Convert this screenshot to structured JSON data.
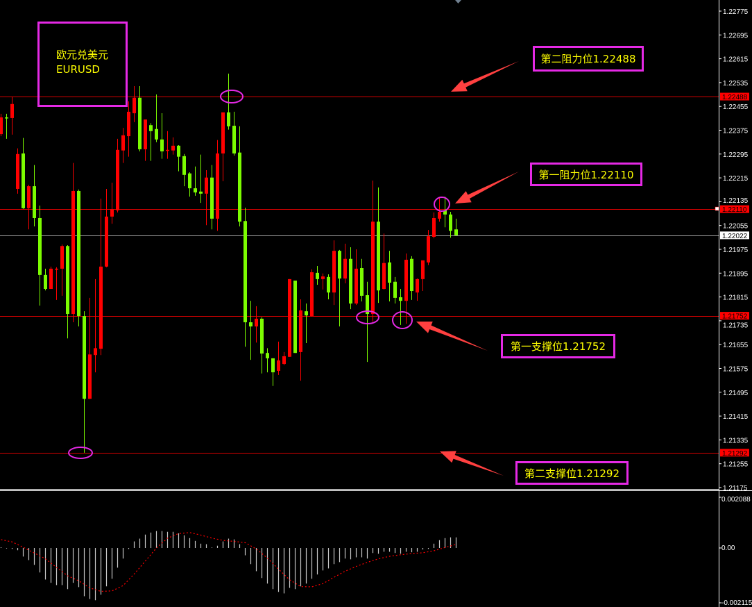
{
  "symbol_box": {
    "name_cn": "欧元兑美元",
    "symbol": "EURUSD"
  },
  "annotations": [
    {
      "label": "第二阻力位1.22488",
      "price": 1.22488
    },
    {
      "label": "第一阻力位1.22110",
      "price": 1.2211
    },
    {
      "label": "第一支撑位1.21752",
      "price": 1.21752
    },
    {
      "label": "第二支撑位1.21292",
      "price": 1.21292
    }
  ],
  "price_tags": [
    {
      "label": "1.22488",
      "value": 1.22488,
      "bg": "#ff0000"
    },
    {
      "label": "1.22110",
      "value": 1.2211,
      "bg": "#ff0000"
    },
    {
      "label": "1.22022",
      "value": 1.22022,
      "bg": "#ffffff"
    },
    {
      "label": "1.21752",
      "value": 1.21752,
      "bg": "#ff0000"
    },
    {
      "label": "1.21292",
      "value": 1.21292,
      "bg": "#ff0000"
    }
  ],
  "macd_axis": {
    "top": "0.002088",
    "zero": "0.00",
    "bottom": "-0.002115"
  },
  "colors": {
    "up": "#ff0000",
    "down": "#7cfc00",
    "level": "#ff0000",
    "bid": "#a0a0a0",
    "marker": "#e529e5",
    "arrow": "#ff4040",
    "text": "#ffff00",
    "histogram": "#c8c8c8",
    "signal": "#ff0000"
  },
  "chart_data": [
    {
      "type": "candlestick",
      "symbol": "EURUSD",
      "y_ticks": [
        "1.22775",
        "1.22695",
        "1.22615",
        "1.22535",
        "1.22455",
        "1.22375",
        "1.22295",
        "1.22215",
        "1.22135",
        "1.22055",
        "1.21975",
        "1.21895",
        "1.21815",
        "1.21735",
        "1.21655",
        "1.21575",
        "1.21495",
        "1.21415",
        "1.21335",
        "1.21255",
        "1.21175"
      ],
      "horizontal_levels": [
        1.22488,
        1.2211,
        1.21752,
        1.21292
      ],
      "bid": 1.22022,
      "ohlc": [
        [
          1.22362,
          1.2243,
          1.22355,
          1.22418
        ],
        [
          1.22418,
          1.2243,
          1.22346,
          1.22416
        ],
        [
          1.22416,
          1.22488,
          1.2236,
          1.22463
        ],
        [
          1.22178,
          1.22314,
          1.22162,
          1.22295
        ],
        [
          1.22297,
          1.22349,
          1.22111,
          1.22113
        ],
        [
          1.22113,
          1.22192,
          1.22042,
          1.22187
        ],
        [
          1.22187,
          1.22258,
          1.22052,
          1.2208
        ],
        [
          1.2208,
          1.22122,
          1.21786,
          1.21889
        ],
        [
          1.21889,
          1.2191,
          1.21837,
          1.21842
        ],
        [
          1.21842,
          1.21917,
          1.21842,
          1.2191
        ],
        [
          1.21908,
          1.21915,
          1.21805,
          1.2191
        ],
        [
          1.2191,
          1.21991,
          1.21819,
          1.21986
        ],
        [
          1.21986,
          1.21989,
          1.21676,
          1.21758
        ],
        [
          1.21758,
          1.22265,
          1.2173,
          1.22171
        ],
        [
          1.22171,
          1.22176,
          1.21716,
          1.21751
        ],
        [
          1.21751,
          1.21767,
          1.21292,
          1.21473
        ],
        [
          1.21473,
          1.21812,
          1.21473,
          1.21622
        ],
        [
          1.2162,
          1.21875,
          1.21562,
          1.21643
        ],
        [
          1.21641,
          1.22145,
          1.2162,
          1.21917
        ],
        [
          1.21917,
          1.22178,
          1.21915,
          1.22085
        ],
        [
          1.22085,
          1.22199,
          1.22061,
          1.22109
        ],
        [
          1.22106,
          1.22346,
          1.22099,
          1.22309
        ],
        [
          1.22307,
          1.22383,
          1.22265,
          1.22358
        ],
        [
          1.22355,
          1.22472,
          1.22286,
          1.22437
        ],
        [
          1.22432,
          1.22523,
          1.22402,
          1.22484
        ],
        [
          1.22484,
          1.22523,
          1.22304,
          1.22311
        ],
        [
          1.22311,
          1.22411,
          1.22272,
          1.22411
        ],
        [
          1.22392,
          1.22399,
          1.22272,
          1.22372
        ],
        [
          1.22379,
          1.22495,
          1.22335,
          1.22344
        ],
        [
          1.22344,
          1.22432,
          1.22279,
          1.22304
        ],
        [
          1.22307,
          1.22372,
          1.22279,
          1.22309
        ],
        [
          1.22307,
          1.22351,
          1.22293,
          1.22323
        ],
        [
          1.22323,
          1.22325,
          1.22237,
          1.22286
        ],
        [
          1.22288,
          1.22295,
          1.22187,
          1.22225
        ],
        [
          1.2223,
          1.22234,
          1.22152,
          1.2218
        ],
        [
          1.2218,
          1.22253,
          1.22155,
          1.22166
        ],
        [
          1.22169,
          1.22293,
          1.22131,
          1.22162
        ],
        [
          1.22162,
          1.22241,
          1.22056,
          1.22216
        ],
        [
          1.22216,
          1.22258,
          1.22042,
          1.22078
        ],
        [
          1.22078,
          1.22342,
          1.22037,
          1.22297
        ],
        [
          1.22297,
          1.22435,
          1.22204,
          1.22435
        ],
        [
          1.22435,
          1.22565,
          1.22377,
          1.22388
        ],
        [
          1.2239,
          1.22437,
          1.2229,
          1.22297
        ],
        [
          1.223,
          1.22388,
          1.22052,
          1.22068
        ],
        [
          1.2207,
          1.22115,
          1.21648,
          1.2173
        ],
        [
          1.2173,
          1.21802,
          1.21604,
          1.21716
        ],
        [
          1.21716,
          1.21784,
          1.21662,
          1.21742
        ],
        [
          1.21742,
          1.21747,
          1.21558,
          1.21625
        ],
        [
          1.21627,
          1.21643,
          1.21562,
          1.21609
        ],
        [
          1.21609,
          1.21609,
          1.21516,
          1.21562
        ],
        [
          1.21567,
          1.21665,
          1.21553,
          1.21602
        ],
        [
          1.2159,
          1.2163,
          1.21586,
          1.21616
        ],
        [
          1.21614,
          1.21875,
          1.21614,
          1.21875
        ],
        [
          1.2187,
          1.2187,
          1.21627,
          1.21627
        ],
        [
          1.2163,
          1.21807,
          1.21534,
          1.2177
        ],
        [
          1.21767,
          1.21793,
          1.2166,
          1.21753
        ],
        [
          1.21751,
          1.21908,
          1.21749,
          1.21898
        ],
        [
          1.21896,
          1.21919,
          1.21856,
          1.21875
        ],
        [
          1.21875,
          1.21894,
          1.2184,
          1.21884
        ],
        [
          1.21882,
          1.21891,
          1.21807,
          1.2183
        ],
        [
          1.2183,
          1.22005,
          1.21788,
          1.2197
        ],
        [
          1.2197,
          1.21973,
          1.21716,
          1.21877
        ],
        [
          1.21877,
          1.21994,
          1.21861,
          1.21943
        ],
        [
          1.21943,
          1.21982,
          1.21774,
          1.21793
        ],
        [
          1.21793,
          1.21975,
          1.21788,
          1.2191
        ],
        [
          1.21912,
          1.21943,
          1.218,
          1.21819
        ],
        [
          1.21821,
          1.21866,
          1.21597,
          1.21758
        ],
        [
          1.21758,
          1.22206,
          1.21732,
          1.22068
        ],
        [
          1.22068,
          1.22183,
          1.21795,
          1.21837
        ],
        [
          1.21842,
          1.22028,
          1.2184,
          1.21929
        ],
        [
          1.21931,
          1.2197,
          1.218,
          1.21863
        ],
        [
          1.21866,
          1.21882,
          1.21793,
          1.21812
        ],
        [
          1.21814,
          1.21842,
          1.21721,
          1.21802
        ],
        [
          1.21802,
          1.21961,
          1.21725,
          1.2194
        ],
        [
          1.21943,
          1.21952,
          1.21805,
          1.21835
        ],
        [
          1.2183,
          1.21877,
          1.21802,
          1.21875
        ],
        [
          1.21875,
          1.21938,
          1.21835,
          1.21938
        ],
        [
          1.21931,
          1.2204,
          1.21922,
          1.22019
        ],
        [
          1.22017,
          1.22099,
          1.22012,
          1.2208
        ],
        [
          1.22078,
          1.2215,
          1.22068,
          1.22101
        ],
        [
          1.22106,
          1.22152,
          1.22049,
          1.22092
        ],
        [
          1.22092,
          1.22101,
          1.22014,
          1.22037
        ],
        [
          1.22042,
          1.22078,
          1.22022,
          1.22022
        ]
      ]
    },
    {
      "type": "bar",
      "indicator": "MACD",
      "ylim": [
        -0.002115,
        0.002088
      ],
      "histogram": [
        0,
        -2e-05,
        -1e-05,
        -9e-05,
        -0.00034,
        -0.00048,
        -0.00067,
        -0.00097,
        -0.00125,
        -0.00138,
        -0.00147,
        -0.00147,
        -0.00163,
        -0.00138,
        -0.00155,
        -0.00191,
        -0.00202,
        -0.00207,
        -0.00185,
        -0.00152,
        -0.00122,
        -0.00078,
        -0.00042,
        -4e-05,
        0.00026,
        0.00037,
        0.00053,
        0.00061,
        0.00067,
        0.00067,
        0.00064,
        0.00064,
        0.00058,
        0.0005,
        0.00039,
        0.00028,
        0.00017,
        0.00015,
        2e-05,
        9e-05,
        0.00026,
        0.00037,
        0.00034,
        0.00015,
        -0.00029,
        -0.00064,
        -0.00092,
        -0.00119,
        -0.00141,
        -0.00163,
        -0.00174,
        -0.0018,
        -0.00158,
        -0.00163,
        -0.00152,
        -0.00141,
        -0.00122,
        -0.00105,
        -0.00089,
        -0.00081,
        -0.00064,
        -0.00056,
        -0.00042,
        -0.00045,
        -0.00037,
        -0.00037,
        -0.00042,
        -0.0002,
        -0.00023,
        -0.00015,
        -0.00015,
        -0.0002,
        -0.00023,
        -0.00015,
        -0.00017,
        -0.00015,
        -6e-05,
        -1e-05,
        0.00017,
        0.00031,
        0.00039,
        0.00042,
        0.00042
      ],
      "signal_every_2nd_bar": [
        0.00033,
        0.00024,
        3e-05,
        -0.0002,
        -0.00043,
        -0.00077,
        -0.0011,
        -0.0013,
        -0.00158,
        -0.00172,
        -0.0017,
        -0.00149,
        -0.00103,
        -0.00052,
        0,
        0.00039,
        0.00057,
        0.00061,
        0.00051,
        0.00039,
        0.0003,
        0.00026,
        0.00021,
        -4e-05,
        -0.0004,
        -0.00084,
        -0.00126,
        -0.00153,
        -0.00154,
        -0.00141,
        -0.00116,
        -0.00092,
        -0.00073,
        -0.00057,
        -0.00043,
        -0.00033,
        -0.00027,
        -0.00022,
        -0.00019,
        -0.00011,
        2e-05,
        0.00014
      ]
    }
  ]
}
